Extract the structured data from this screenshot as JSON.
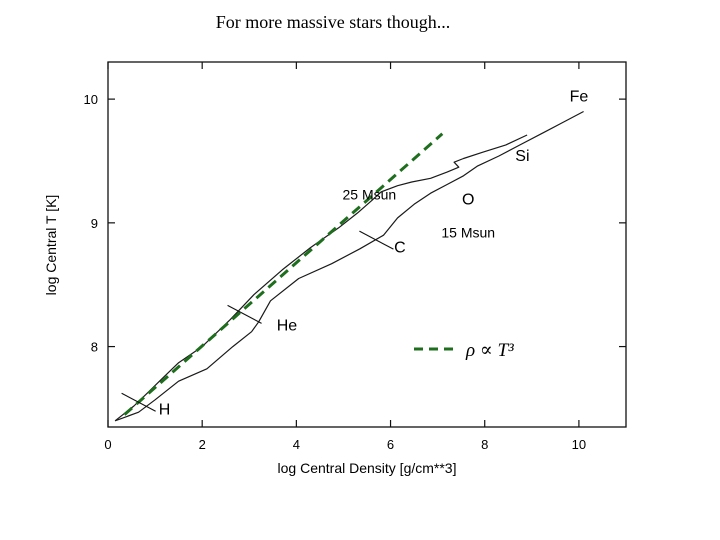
{
  "slide": {
    "title": "For more massive stars though..."
  },
  "chart_data": {
    "type": "line",
    "xlabel": "log Central Density [g/cm**3]",
    "ylabel": "log Central T [K]",
    "xlim": [
      0,
      11
    ],
    "ylim": [
      7.35,
      10.3
    ],
    "x_ticks": [
      0,
      2,
      4,
      6,
      8,
      10
    ],
    "y_ticks": [
      8,
      9,
      10
    ],
    "grid": false,
    "series": [
      {
        "name": "25 Msun",
        "color": "#1a1a1a",
        "style": "solid",
        "x": [
          0.15,
          0.55,
          0.85,
          1.2,
          1.5,
          2.0,
          2.6,
          3.1,
          3.7,
          4.3,
          4.9,
          5.3,
          5.6,
          5.8,
          6.15,
          6.45,
          6.85,
          7.2,
          7.45,
          7.35,
          7.55,
          7.95,
          8.45,
          8.9
        ],
        "y": [
          7.4,
          7.52,
          7.63,
          7.76,
          7.87,
          8.0,
          8.22,
          8.42,
          8.62,
          8.8,
          8.96,
          9.08,
          9.18,
          9.25,
          9.3,
          9.33,
          9.36,
          9.41,
          9.45,
          9.49,
          9.52,
          9.57,
          9.63,
          9.71
        ]
      },
      {
        "name": "15 Msun",
        "color": "#1a1a1a",
        "style": "solid",
        "x": [
          0.15,
          0.65,
          1.0,
          1.5,
          2.1,
          2.65,
          3.05,
          3.2,
          3.45,
          4.05,
          4.75,
          5.35,
          5.85,
          6.15,
          6.5,
          6.85,
          7.2,
          7.55,
          7.85,
          8.3,
          8.75,
          9.2,
          9.6,
          10.1
        ],
        "y": [
          7.4,
          7.47,
          7.57,
          7.72,
          7.82,
          8.0,
          8.12,
          8.2,
          8.37,
          8.55,
          8.67,
          8.79,
          8.9,
          9.04,
          9.15,
          9.24,
          9.31,
          9.38,
          9.46,
          9.54,
          9.63,
          9.72,
          9.8,
          9.9
        ]
      },
      {
        "name": "ρ ∝ T³",
        "color": "#1e6e1e",
        "style": "dashed",
        "x": [
          0.35,
          7.1
        ],
        "y": [
          7.45,
          9.72
        ]
      }
    ],
    "annotations": [
      {
        "text": "H",
        "x": 1.2,
        "y": 7.45
      },
      {
        "text": "He",
        "x": 3.8,
        "y": 8.13
      },
      {
        "text": "C",
        "x": 6.2,
        "y": 8.76
      },
      {
        "text": "O",
        "x": 7.65,
        "y": 9.15
      },
      {
        "text": "Si",
        "x": 8.8,
        "y": 9.5
      },
      {
        "text": "Fe",
        "x": 10.0,
        "y": 9.98
      },
      {
        "text": "25 Msun",
        "x": 5.55,
        "y": 9.19
      },
      {
        "text": "15 Msun",
        "x": 7.65,
        "y": 8.88
      }
    ],
    "burning_marks": [
      {
        "x": 0.65,
        "y": 7.55
      },
      {
        "x": 2.9,
        "y": 8.26
      },
      {
        "x": 5.7,
        "y": 8.86
      }
    ],
    "legend": {
      "label": "ρ ∝ T³",
      "position": "lower-right"
    }
  }
}
